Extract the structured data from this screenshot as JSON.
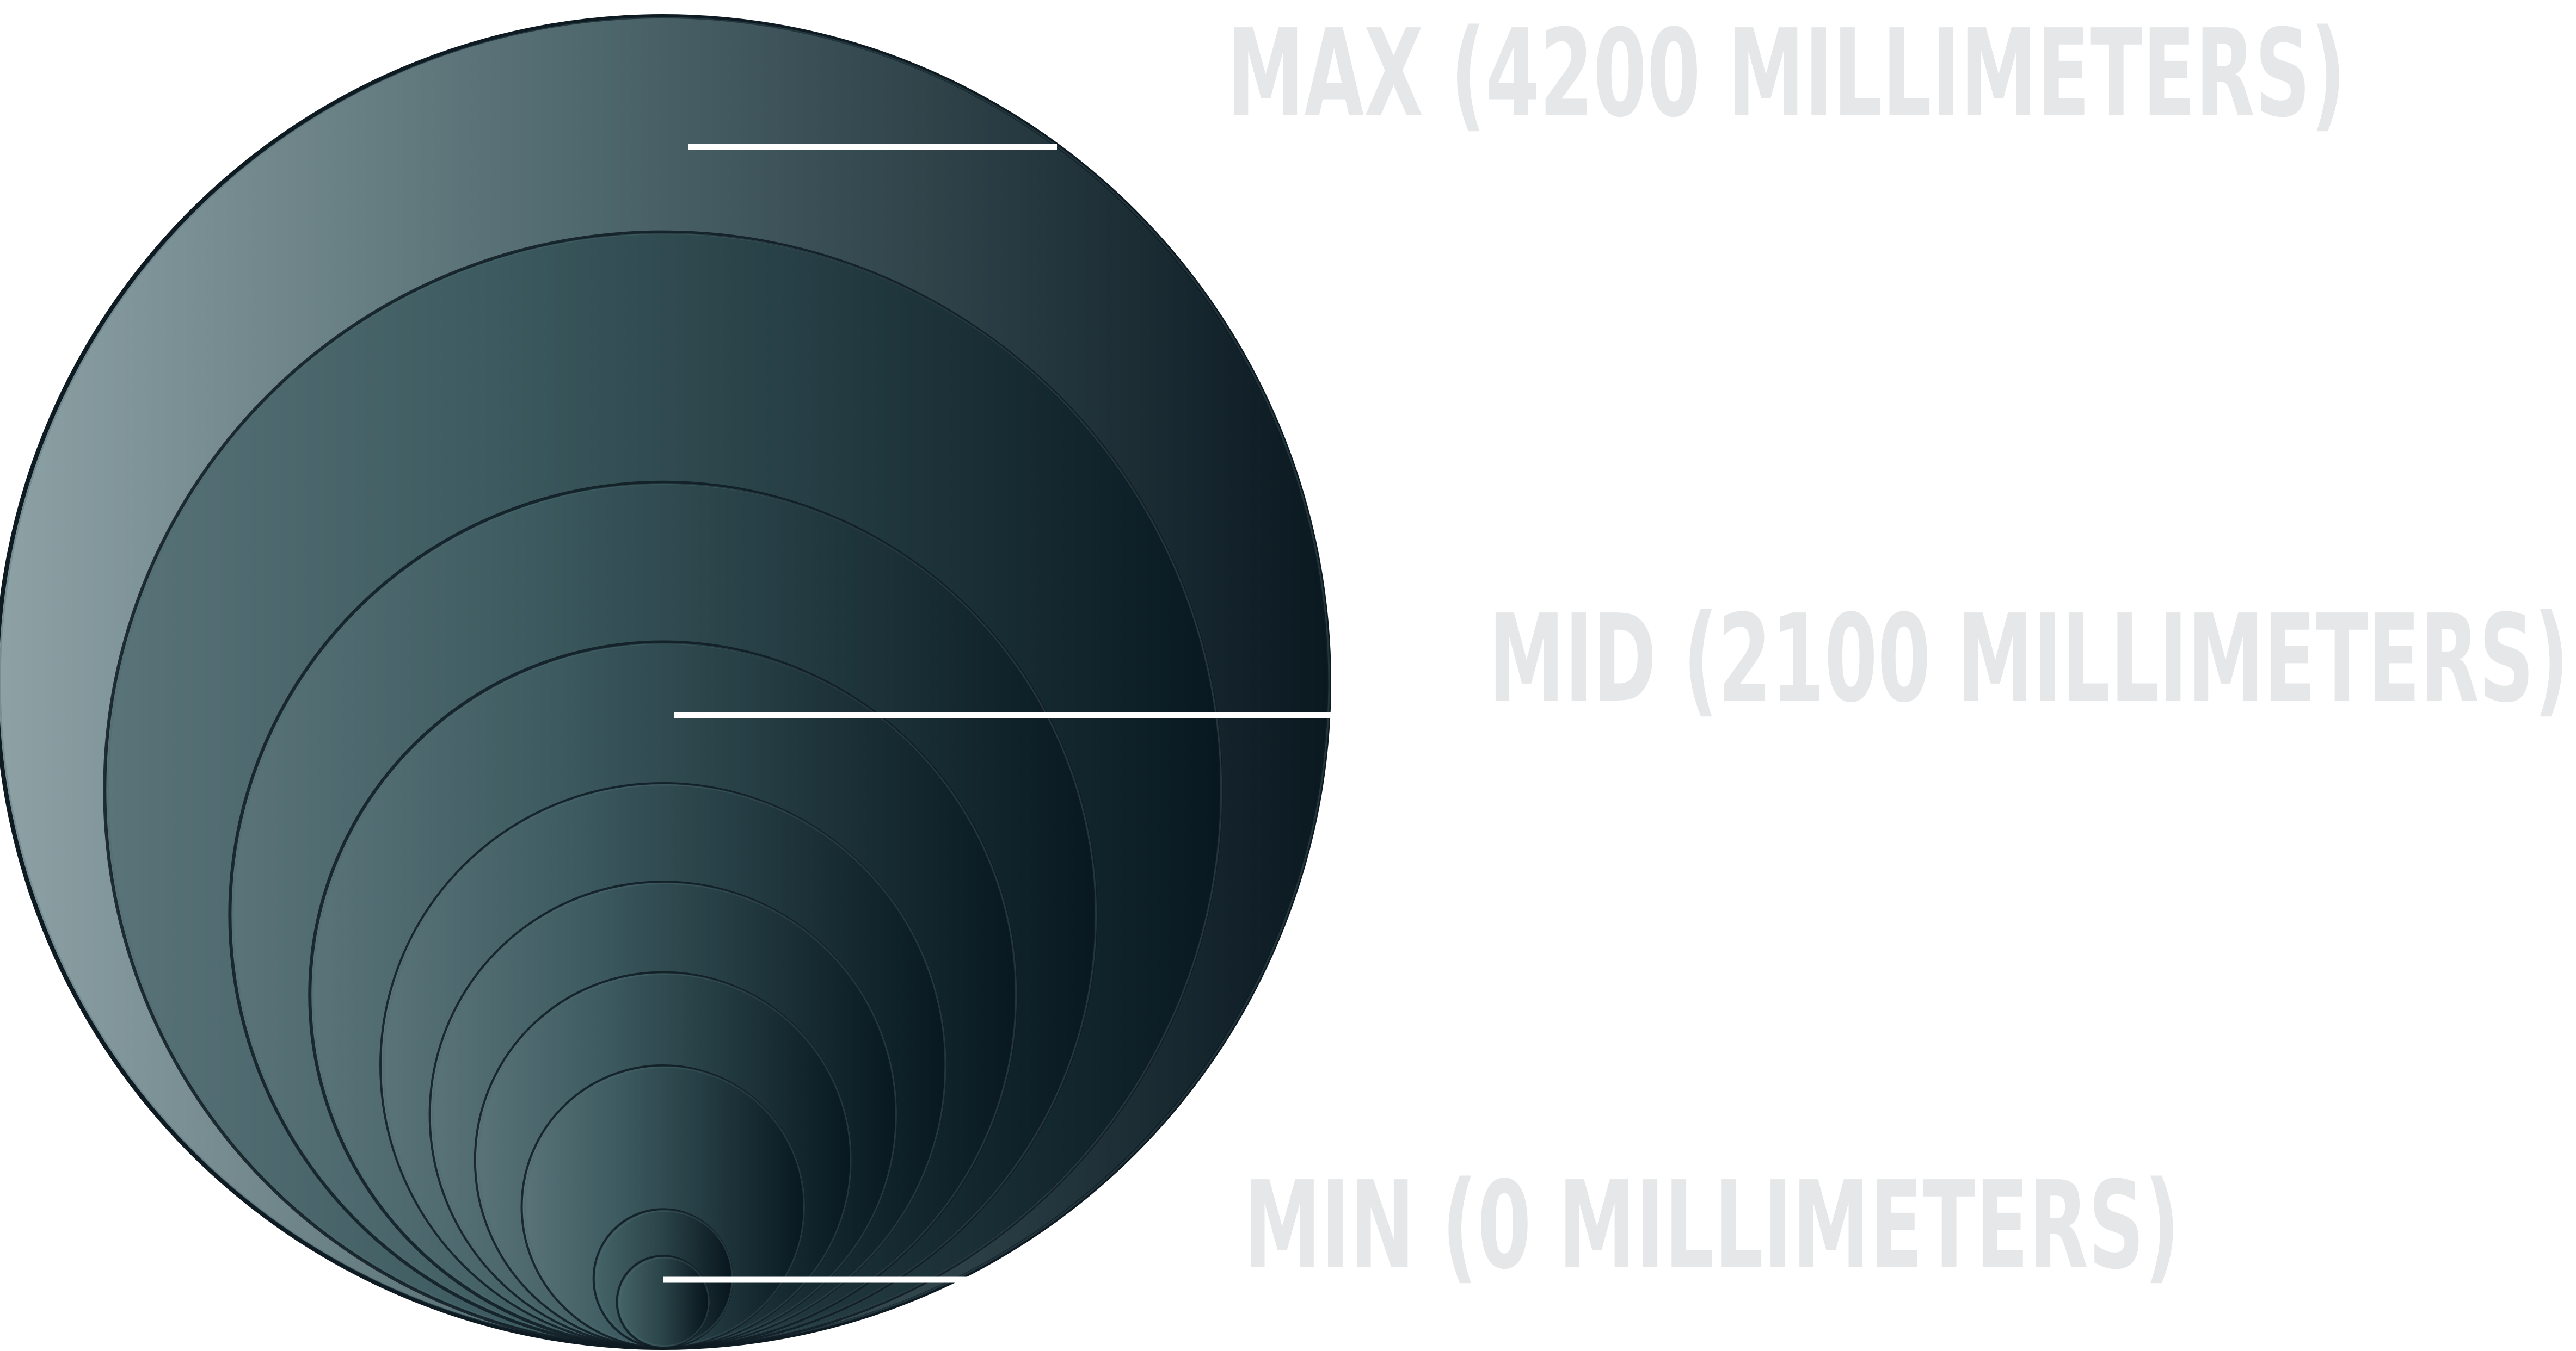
{
  "chart_data": {
    "type": "nested-circle-scale",
    "series": [
      {
        "values": [
          0,
          2100,
          4200
        ]
      }
    ],
    "labels": [
      {
        "level": "max",
        "value": 4200,
        "text": "MAX (4200 MILLIMETERS)"
      },
      {
        "level": "mid",
        "value": 2100,
        "text": "MID (2100 MILLIMETERS)"
      },
      {
        "level": "min",
        "value": 0,
        "text": "MIN (0 MILLIMETERS)"
      }
    ],
    "ring_count": 10,
    "colors": {
      "gradient_left_light": "#8aa0a4",
      "gradient_mid": "#3f5c60",
      "gradient_right_dark": "#081820",
      "ring_stroke": "#0f1b22",
      "ring_stroke_light": "#4a6a70",
      "leader_line": "#ffffff",
      "label_text": "#e6e7e8"
    }
  }
}
